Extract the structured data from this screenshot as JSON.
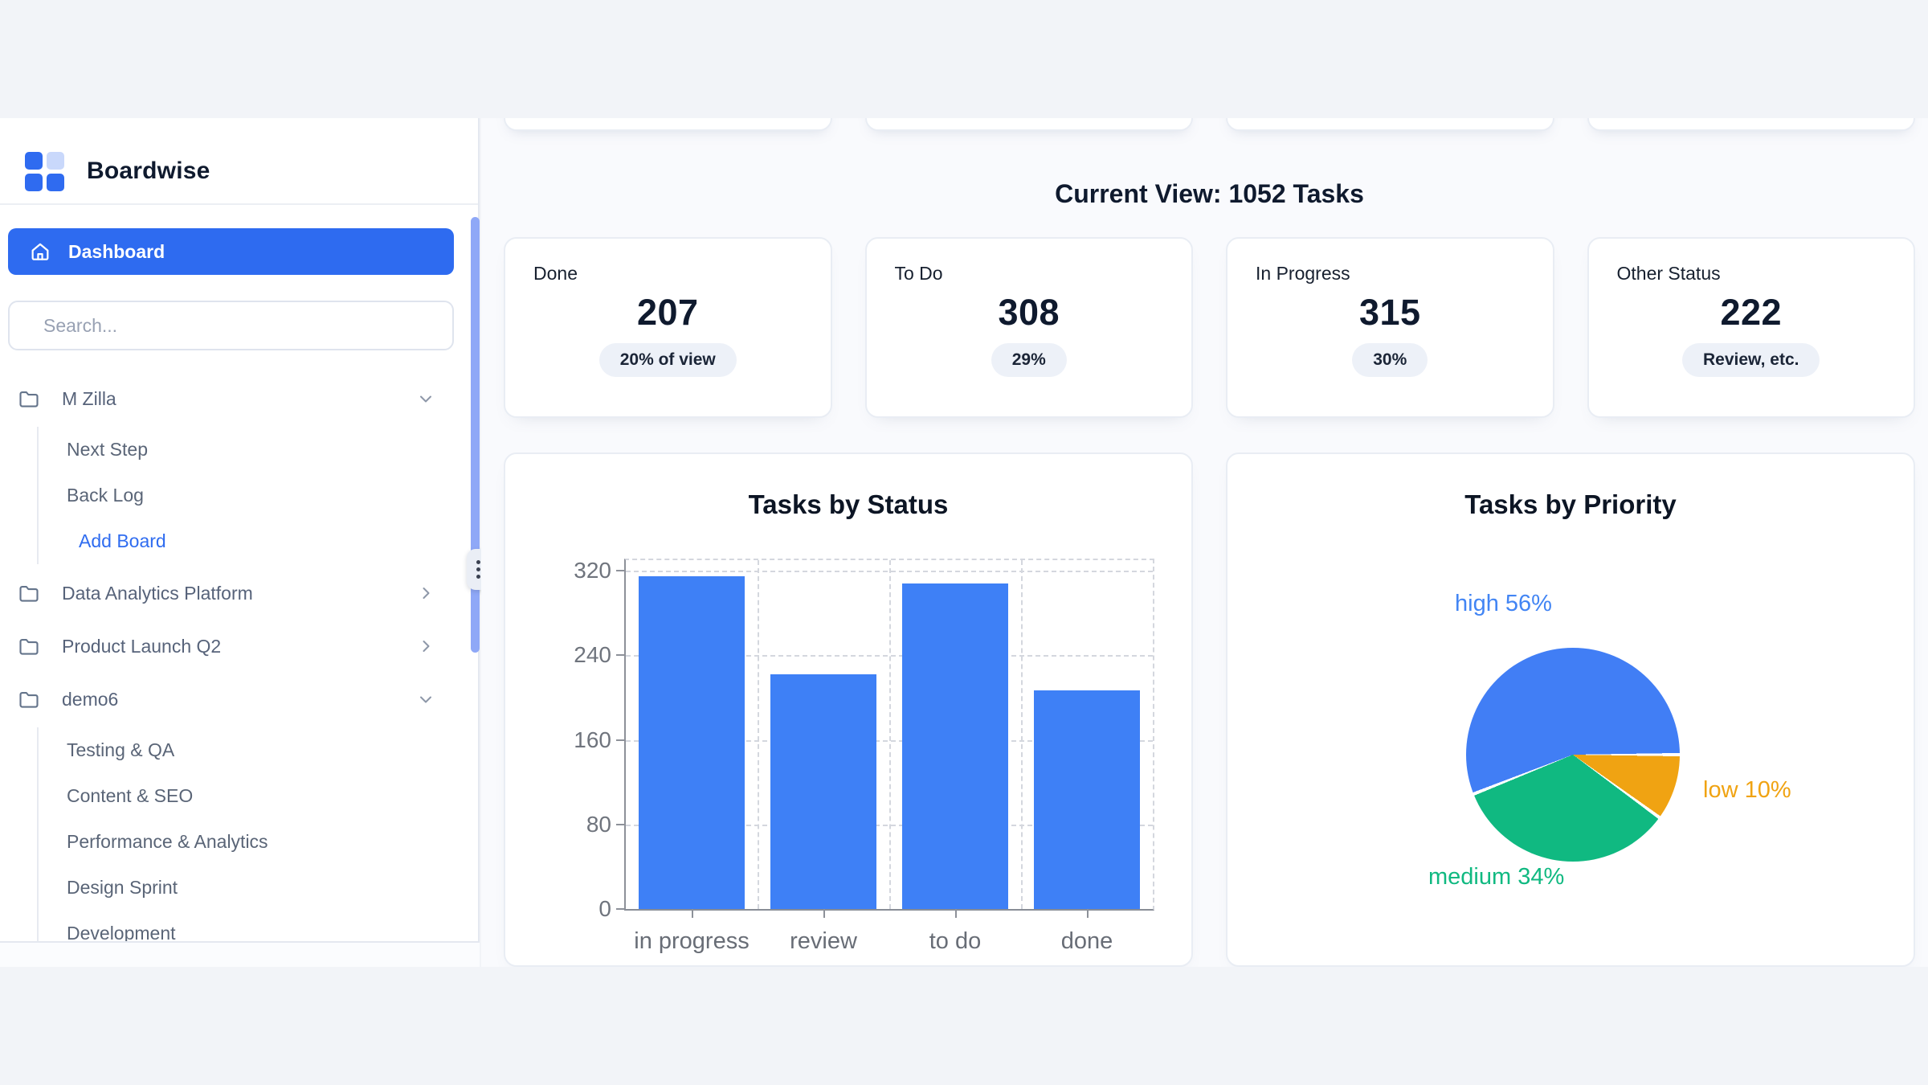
{
  "brand": {
    "name": "Boardwise"
  },
  "sidebar": {
    "dashboard": "Dashboard",
    "search_placeholder": "Search...",
    "projects": [
      {
        "label": "M Zilla",
        "state": "expanded",
        "children": [
          "Next Step",
          "Back Log"
        ],
        "action": "Add Board"
      },
      {
        "label": "Data Analytics Platform",
        "state": "collapsed"
      },
      {
        "label": "Product Launch Q2",
        "state": "collapsed"
      },
      {
        "label": "demo6",
        "state": "expanded",
        "children": [
          "Testing & QA",
          "Content & SEO",
          "Performance & Analytics",
          "Design Sprint",
          "Development"
        ]
      }
    ]
  },
  "main": {
    "heading": "Current View: 1052 Tasks",
    "stats": [
      {
        "label": "Done",
        "value": "207",
        "badge": "20% of view"
      },
      {
        "label": "To Do",
        "value": "308",
        "badge": "29%"
      },
      {
        "label": "In Progress",
        "value": "315",
        "badge": "30%"
      },
      {
        "label": "Other Status",
        "value": "222",
        "badge": "Review, etc."
      }
    ]
  },
  "chart_data": [
    {
      "type": "bar",
      "title": "Tasks by Status",
      "categories": [
        "in progress",
        "review",
        "to do",
        "done"
      ],
      "values": [
        315,
        222,
        308,
        207
      ],
      "yticks": [
        0,
        80,
        160,
        240,
        320
      ],
      "ylim": [
        0,
        330
      ],
      "xlabel": "",
      "ylabel": "",
      "bar_color": "#3e80f6",
      "grid": "dashed",
      "legend": false
    },
    {
      "type": "pie",
      "title": "Tasks by Priority",
      "rotation_deg": -111.6,
      "slices": [
        {
          "label": "high",
          "pct": 56,
          "display": "high 56%",
          "color": "#417ef5",
          "label_color": "#4285f4"
        },
        {
          "label": "low",
          "pct": 10,
          "display": "low 10%",
          "color": "#f0a312",
          "label_color": "#f0a312"
        },
        {
          "label": "medium",
          "pct": 34,
          "display": "medium 34%",
          "color": "#10b981",
          "label_color": "#10b981"
        }
      ],
      "legend": false
    }
  ],
  "colors": {
    "primary": "#2e6bf0",
    "bar": "#3e80f6",
    "pie_high": "#417ef5",
    "pie_low": "#f0a312",
    "pie_medium": "#10b981",
    "badge_bg": "#edf1f8",
    "resize_bar": "#8fa8f7"
  }
}
